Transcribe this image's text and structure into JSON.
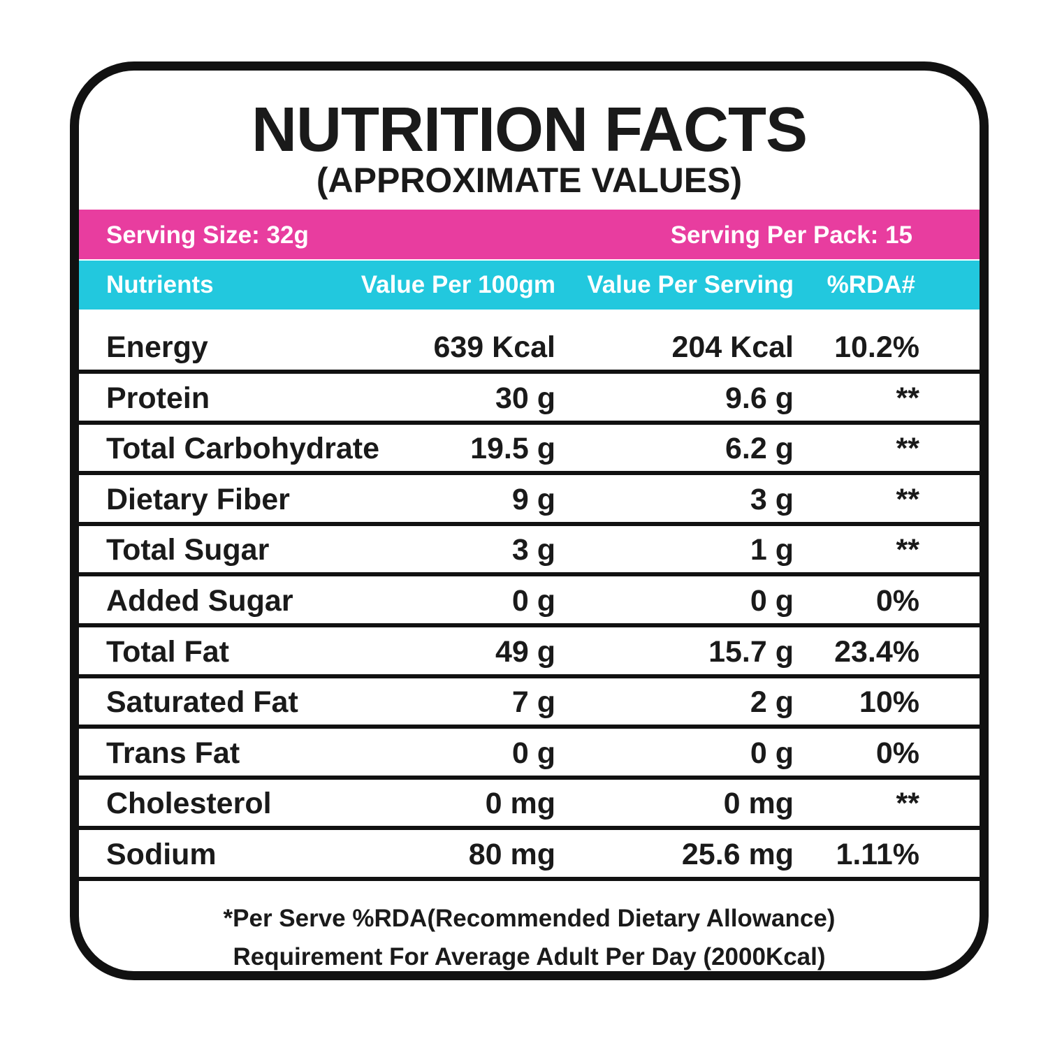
{
  "title": "NUTRITION FACTS",
  "subtitle": "(APPROXIMATE VALUES)",
  "serving": {
    "size": "Serving Size: 32g",
    "per_pack": "Serving Per Pack: 15"
  },
  "table": {
    "headers": [
      "Nutrients",
      "Value Per 100gm",
      "Value Per Serving",
      "%RDA#"
    ],
    "rows": [
      [
        "Energy",
        "639 Kcal",
        "204 Kcal",
        "10.2%"
      ],
      [
        "Protein",
        "30 g",
        "9.6 g",
        "**"
      ],
      [
        "Total Carbohydrate",
        "19.5 g",
        "6.2 g",
        "**"
      ],
      [
        "Dietary Fiber",
        "9 g",
        "3 g",
        "**"
      ],
      [
        "Total Sugar",
        "3 g",
        "1 g",
        "**"
      ],
      [
        "Added Sugar",
        "0 g",
        "0 g",
        "0%"
      ],
      [
        "Total Fat",
        "49 g",
        "15.7 g",
        "23.4%"
      ],
      [
        "Saturated Fat",
        "7 g",
        "2 g",
        "10%"
      ],
      [
        "Trans Fat",
        "0 g",
        "0 g",
        "0%"
      ],
      [
        "Cholesterol",
        "0 mg",
        "0 mg",
        "**"
      ],
      [
        "Sodium",
        "80 mg",
        "25.6 mg",
        "1.11%"
      ]
    ]
  },
  "footnote": [
    "*Per Serve %RDA(Recommended Dietary Allowance)",
    "Requirement For Average Adult Per Day (2000Kcal)"
  ]
}
